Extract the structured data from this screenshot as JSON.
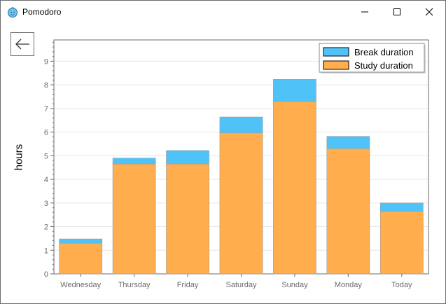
{
  "window": {
    "title": "Pomodoro",
    "app_icon": "tomato-icon",
    "controls": {
      "minimize": "minimize-icon",
      "maximize": "maximize-icon",
      "close": "close-icon"
    }
  },
  "back_button": {
    "icon": "arrow-left-icon"
  },
  "colors": {
    "break": "#4fc3f7",
    "study": "#ffad4d",
    "bar_border": "#9e9e9e",
    "grid": "#e6e6e6",
    "axis": "#6b6b6b"
  },
  "chart_data": {
    "type": "bar",
    "stacked": true,
    "title": "",
    "xlabel": "",
    "ylabel": "hours",
    "categories": [
      "Wednesday",
      "Thursday",
      "Friday",
      "Saturday",
      "Sunday",
      "Monday",
      "Today"
    ],
    "series": [
      {
        "name": "Study duration",
        "values": [
          1.3,
          4.65,
          4.65,
          5.97,
          7.3,
          5.3,
          2.65
        ]
      },
      {
        "name": "Break duration",
        "values": [
          0.18,
          0.25,
          0.57,
          0.67,
          0.93,
          0.52,
          0.35
        ]
      }
    ],
    "ylim": [
      0,
      9.9
    ],
    "yticks": [
      0,
      1,
      2,
      3,
      4,
      5,
      6,
      7,
      8,
      9
    ],
    "ytick_labels": [
      "0",
      "1",
      "2",
      "3",
      "4",
      "5",
      "6",
      "7",
      "8",
      "9"
    ],
    "grid": true,
    "legend": {
      "position": "top-right",
      "entries": [
        "Break duration",
        "Study duration"
      ]
    }
  }
}
